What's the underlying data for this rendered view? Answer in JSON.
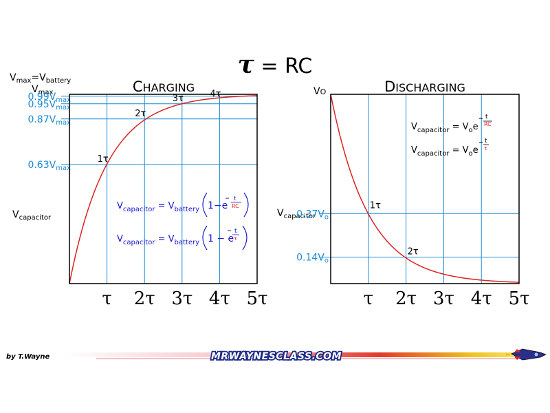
{
  "title": {
    "symbol": "τ",
    "rest": " = RC"
  },
  "footer": {
    "author": "by T.Wayne",
    "site": "MRWAYNESCLASS.COM"
  },
  "colors": {
    "curve": "#dd2222",
    "grid": "#1a8ad4",
    "accent": "#1a8ad4",
    "formula": "#1a1acc",
    "exponent": "#dd2222"
  },
  "chart_data": [
    {
      "type": "line",
      "title": {
        "big": "C",
        "small": "HARGING"
      },
      "xlim": [
        0,
        5
      ],
      "ylim": [
        0,
        1
      ],
      "x_ticks": [
        {
          "value": 1,
          "label": "τ"
        },
        {
          "value": 2,
          "label": "2τ"
        },
        {
          "value": 3,
          "label": "3τ"
        },
        {
          "value": 4,
          "label": "4τ"
        },
        {
          "value": 5,
          "label": "5τ"
        }
      ],
      "y_label": {
        "main": "V",
        "sub": "capacitor"
      },
      "top_label": {
        "line1_main": "V",
        "line1_sub": "max",
        "eq": "=V",
        "line1_sub2": "battery",
        "line2_main": "V",
        "line2_sub": "max"
      },
      "levels": [
        {
          "y": 0.63,
          "prefix": "0.63V",
          "sub": "max"
        },
        {
          "y": 0.87,
          "prefix": "0.87V",
          "sub": "max"
        },
        {
          "y": 0.95,
          "prefix": "0.95V",
          "sub": "max"
        },
        {
          "y": 0.99,
          "prefix": "0.99V",
          "sub": "max"
        }
      ],
      "points": [
        {
          "x": 1,
          "y": 0.63,
          "label": "1τ"
        },
        {
          "x": 2,
          "y": 0.87,
          "label": "2τ"
        },
        {
          "x": 3,
          "y": 0.95,
          "label": "3τ"
        },
        {
          "x": 4,
          "y": 0.98,
          "label": "4τ"
        }
      ],
      "curve": "1 - exp(-t)",
      "formulas": [
        {
          "lhs": "V",
          "lhs_sub": "capacitor",
          "eq": " = V",
          "rhs_sub": "battery",
          "open": "1",
          "minus": "−e",
          "exp_num": "t",
          "exp_den": "RC"
        },
        {
          "lhs": "V",
          "lhs_sub": "capacitor",
          "eq": " = V",
          "rhs_sub": "battery",
          "open": "1",
          "minus": " − e",
          "exp_num": "t",
          "exp_den": "τ"
        }
      ]
    },
    {
      "type": "line",
      "title": {
        "big": "D",
        "small": "ISCHARGING"
      },
      "xlim": [
        0,
        5
      ],
      "ylim": [
        0,
        1
      ],
      "x_ticks": [
        {
          "value": 1,
          "label": "τ"
        },
        {
          "value": 2,
          "label": "2τ"
        },
        {
          "value": 3,
          "label": "3τ"
        },
        {
          "value": 4,
          "label": "4τ"
        },
        {
          "value": 5,
          "label": "5τ"
        }
      ],
      "y_label": {
        "main": "V",
        "sub": "capacitor"
      },
      "top_label": {
        "main": "V",
        "sub": "O"
      },
      "levels": [
        {
          "y": 0.37,
          "prefix": "0.37V",
          "sub": "o"
        },
        {
          "y": 0.14,
          "prefix": "0.14V",
          "sub": "o"
        }
      ],
      "points": [
        {
          "x": 1,
          "y": 0.37,
          "label": "1τ"
        },
        {
          "x": 2,
          "y": 0.14,
          "label": "2τ"
        }
      ],
      "curve": "exp(-t)",
      "formulas": [
        {
          "lhs": "V",
          "lhs_sub": "capacitor",
          "eq": " = V",
          "rhs_sub": "o",
          "base": "e",
          "exp_num": "t",
          "exp_den": "RC"
        },
        {
          "lhs": "V",
          "lhs_sub": "capacitor",
          "eq": " = V",
          "rhs_sub": "o",
          "base": "e",
          "exp_num": "t",
          "exp_den": "τ"
        }
      ]
    }
  ]
}
